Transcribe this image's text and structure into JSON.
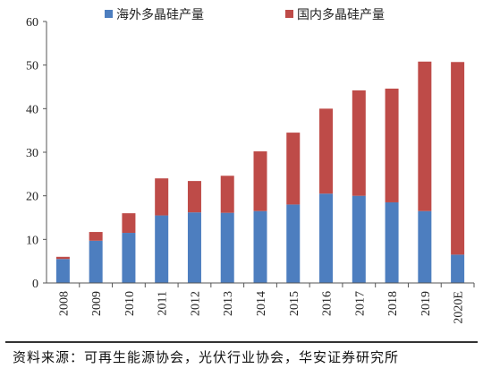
{
  "chart_data": {
    "type": "bar",
    "stacked": true,
    "categories": [
      "2008",
      "2009",
      "2010",
      "2011",
      "2012",
      "2013",
      "2014",
      "2015",
      "2016",
      "2017",
      "2018",
      "2019",
      "2020E"
    ],
    "series": [
      {
        "name": "海外多晶硅产量",
        "color": "#4d7ebf",
        "values": [
          5.5,
          9.7,
          11.5,
          15.5,
          16.2,
          16.1,
          16.5,
          18.0,
          20.5,
          20.0,
          18.5,
          16.5,
          6.5
        ]
      },
      {
        "name": "国内多晶硅产量",
        "color": "#be4b48",
        "values": [
          0.5,
          2.0,
          4.5,
          8.5,
          7.2,
          8.5,
          13.7,
          16.5,
          19.5,
          24.2,
          26.1,
          34.3,
          44.2
        ]
      }
    ],
    "ylim": [
      0,
      60
    ],
    "yticks": [
      0,
      10,
      20,
      30,
      40,
      50,
      60
    ],
    "xlabel": "",
    "ylabel": "",
    "legend": "top",
    "grid": false
  },
  "source_note": "资料来源：可再生能源协会，光伏行业协会，华安证券研究所"
}
